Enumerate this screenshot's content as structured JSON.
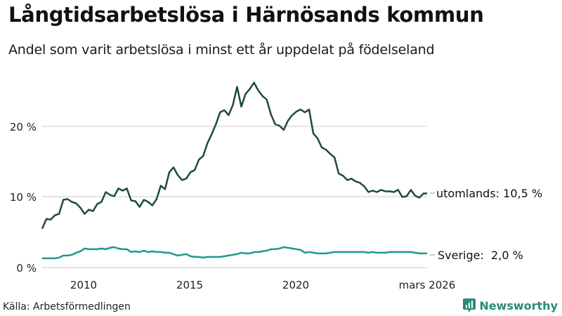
{
  "header": {
    "title": "Långtidsarbetslösa i Härnösands kommun",
    "subtitle": "Andel som varit arbetslösa i minst ett år uppdelat på födelseland"
  },
  "footer": {
    "source": "Källa: Arbetsförmedlingen",
    "brand": "Newsworthy",
    "brand_icon": "bar-chart-speech-bubble-icon"
  },
  "colors": {
    "utomlands": "#1d4a42",
    "sverige": "#1f9a8a",
    "grid": "#dcdcdc",
    "brand": "#2b8a78"
  },
  "axes": {
    "y_ticks": [
      "0 %",
      "10 %",
      "20 %"
    ],
    "x_ticks": [
      "2010",
      "2015",
      "2020",
      "mars 2026"
    ]
  },
  "labels": {
    "utomlands": "utomlands: 10,5 %",
    "sverige": "Sverige:  2,0 %"
  },
  "chart_data": {
    "type": "line",
    "title": "Långtidsarbetslösa i Härnösands kommun",
    "subtitle": "Andel som varit arbetslösa i minst ett år uppdelat på födelseland",
    "xlabel": "",
    "ylabel": "",
    "ylim": [
      0,
      28
    ],
    "y_ticks": [
      0,
      10,
      20
    ],
    "y_tick_labels": [
      "0 %",
      "10 %",
      "20 %"
    ],
    "x_ticks": [
      2010,
      2015,
      2020,
      2026.17
    ],
    "x_tick_labels": [
      "2010",
      "2015",
      "2020",
      "mars 2026"
    ],
    "grid": "horizontal",
    "legend": "direct end labels on right",
    "source": "Källa: Arbetsförmedlingen",
    "x": [
      2008.0,
      2008.2,
      2008.4,
      2008.6,
      2008.8,
      2009.0,
      2009.2,
      2009.4,
      2009.6,
      2009.8,
      2010.0,
      2010.2,
      2010.4,
      2010.6,
      2010.8,
      2011.0,
      2011.2,
      2011.4,
      2011.6,
      2011.8,
      2012.0,
      2012.2,
      2012.4,
      2012.6,
      2012.8,
      2013.0,
      2013.2,
      2013.4,
      2013.6,
      2013.8,
      2014.0,
      2014.2,
      2014.4,
      2014.6,
      2014.8,
      2015.0,
      2015.2,
      2015.4,
      2015.6,
      2015.8,
      2016.0,
      2016.2,
      2016.4,
      2016.6,
      2016.8,
      2017.0,
      2017.2,
      2017.4,
      2017.6,
      2017.8,
      2018.0,
      2018.2,
      2018.4,
      2018.6,
      2018.8,
      2019.0,
      2019.2,
      2019.4,
      2019.6,
      2019.8,
      2020.0,
      2020.2,
      2020.4,
      2020.6,
      2020.8,
      2021.0,
      2021.2,
      2021.4,
      2021.6,
      2021.8,
      2022.0,
      2022.2,
      2022.4,
      2022.6,
      2022.8,
      2023.0,
      2023.2,
      2023.4,
      2023.6,
      2023.8,
      2024.0,
      2024.2,
      2024.4,
      2024.6,
      2024.8,
      2025.0,
      2025.2,
      2025.4,
      2025.6,
      2025.8,
      2026.0,
      2026.17
    ],
    "series": [
      {
        "name": "utomlands",
        "color": "#1d4a42",
        "end_value": 10.5,
        "end_label": "utomlands: 10,5 %",
        "values": [
          5.5,
          6.9,
          6.8,
          7.4,
          7.6,
          9.6,
          9.7,
          9.3,
          9.1,
          8.5,
          7.6,
          8.2,
          8.0,
          9.0,
          9.3,
          10.7,
          10.3,
          10.1,
          11.2,
          10.9,
          11.2,
          9.5,
          9.4,
          8.6,
          9.6,
          9.3,
          8.8,
          9.7,
          11.6,
          11.1,
          13.5,
          14.2,
          13.1,
          12.4,
          12.6,
          13.5,
          13.8,
          15.3,
          15.8,
          17.6,
          18.9,
          20.3,
          22.0,
          22.3,
          21.6,
          23.0,
          25.6,
          22.8,
          24.6,
          25.3,
          26.2,
          25.1,
          24.3,
          23.8,
          21.7,
          20.3,
          20.1,
          19.5,
          20.8,
          21.6,
          22.1,
          22.4,
          22.0,
          22.4,
          19.0,
          18.3,
          17.0,
          16.7,
          16.1,
          15.6,
          13.3,
          13.0,
          12.4,
          12.6,
          12.2,
          12.0,
          11.5,
          10.7,
          10.9,
          10.7,
          11.0,
          10.8,
          10.8,
          10.7,
          11.0,
          10.0,
          10.1,
          11.0,
          10.2,
          9.9,
          10.5,
          10.5
        ]
      },
      {
        "name": "Sverige",
        "color": "#1f9a8a",
        "end_value": 2.0,
        "end_label": "Sverige:  2,0 %",
        "values": [
          1.3,
          1.3,
          1.3,
          1.3,
          1.4,
          1.7,
          1.7,
          1.8,
          2.1,
          2.3,
          2.7,
          2.6,
          2.6,
          2.6,
          2.7,
          2.6,
          2.8,
          2.9,
          2.7,
          2.6,
          2.6,
          2.2,
          2.3,
          2.2,
          2.4,
          2.2,
          2.3,
          2.2,
          2.2,
          2.1,
          2.1,
          1.9,
          1.7,
          1.8,
          1.9,
          1.6,
          1.5,
          1.5,
          1.4,
          1.5,
          1.5,
          1.5,
          1.5,
          1.6,
          1.7,
          1.8,
          1.9,
          2.1,
          2.0,
          2.0,
          2.2,
          2.2,
          2.3,
          2.4,
          2.6,
          2.6,
          2.7,
          2.9,
          2.8,
          2.7,
          2.6,
          2.5,
          2.1,
          2.2,
          2.1,
          2.0,
          2.0,
          2.0,
          2.1,
          2.2,
          2.2,
          2.2,
          2.2,
          2.2,
          2.2,
          2.2,
          2.2,
          2.1,
          2.2,
          2.1,
          2.1,
          2.1,
          2.2,
          2.2,
          2.2,
          2.2,
          2.2,
          2.2,
          2.1,
          2.0,
          2.0,
          2.0
        ]
      }
    ]
  }
}
